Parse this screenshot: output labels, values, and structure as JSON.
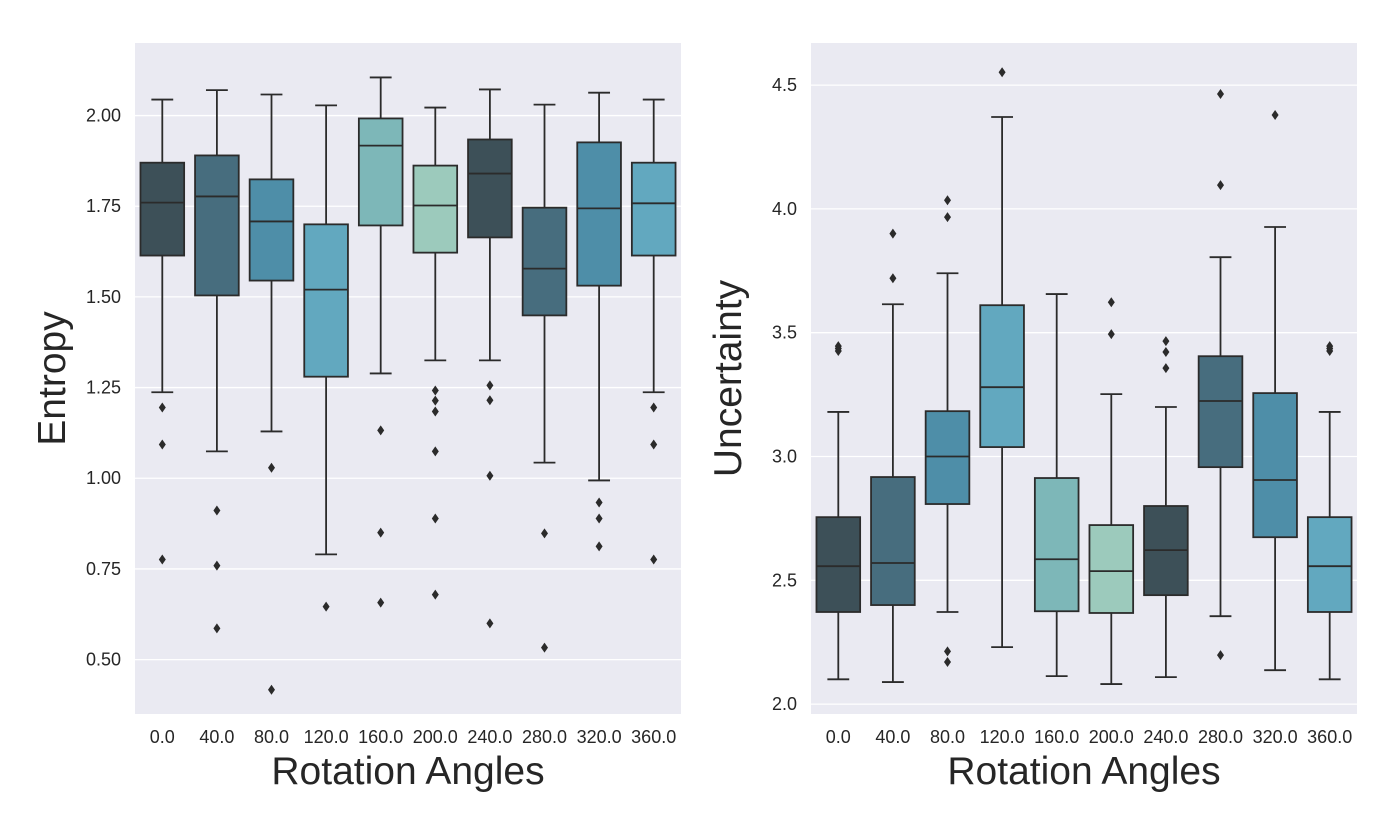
{
  "figure": {
    "background": "#ffffff",
    "axes_facecolor": "#eaeaf2",
    "grid_color": "#ffffff",
    "line_color": "#2b2b2b",
    "palette": [
      "#3d5058",
      "#476d7e",
      "#4e8ea8",
      "#62a8bf",
      "#7db7b8",
      "#9ccabc",
      "#3d5058",
      "#476d7e",
      "#4e8ea8",
      "#62a8bf"
    ]
  },
  "chart_data": [
    {
      "type": "boxplot",
      "title": "",
      "xlabel": "Rotation Angles",
      "ylabel": "Entropy",
      "categories": [
        "0.0",
        "40.0",
        "80.0",
        "120.0",
        "160.0",
        "200.0",
        "240.0",
        "280.0",
        "320.0",
        "360.0"
      ],
      "ylim": [
        0.35,
        2.2
      ],
      "yticks": [
        0.5,
        0.75,
        1.0,
        1.25,
        1.5,
        1.75,
        2.0
      ],
      "ytick_labels": [
        "0.50",
        "0.75",
        "1.00",
        "1.25",
        "1.50",
        "1.75",
        "2.00"
      ],
      "grid": true,
      "boxes": [
        {
          "whislo": 1.237,
          "q1": 1.614,
          "med": 1.76,
          "q3": 1.87,
          "whishi": 2.044,
          "fliers": [
            1.195,
            1.093,
            0.776
          ]
        },
        {
          "whislo": 1.074,
          "q1": 1.504,
          "med": 1.777,
          "q3": 1.89,
          "whishi": 2.07,
          "fliers": [
            0.911,
            0.759,
            0.586
          ]
        },
        {
          "whislo": 1.129,
          "q1": 1.545,
          "med": 1.708,
          "q3": 1.824,
          "whishi": 2.058,
          "fliers": [
            1.029,
            0.417
          ]
        },
        {
          "whislo": 0.79,
          "q1": 1.28,
          "med": 1.52,
          "q3": 1.7,
          "whishi": 2.028,
          "fliers": [
            0.646
          ]
        },
        {
          "whislo": 1.289,
          "q1": 1.697,
          "med": 1.917,
          "q3": 1.992,
          "whishi": 2.105,
          "fliers": [
            1.132,
            0.85,
            0.657
          ]
        },
        {
          "whislo": 1.325,
          "q1": 1.622,
          "med": 1.752,
          "q3": 1.862,
          "whishi": 2.022,
          "fliers": [
            1.242,
            1.214,
            1.184,
            1.074,
            0.889,
            0.679
          ]
        },
        {
          "whislo": 1.325,
          "q1": 1.664,
          "med": 1.84,
          "q3": 1.934,
          "whishi": 2.072,
          "fliers": [
            1.256,
            1.215,
            1.007,
            0.6
          ]
        },
        {
          "whislo": 1.043,
          "q1": 1.449,
          "med": 1.578,
          "q3": 1.746,
          "whishi": 2.03,
          "fliers": [
            0.848,
            0.533
          ]
        },
        {
          "whislo": 0.994,
          "q1": 1.531,
          "med": 1.744,
          "q3": 1.926,
          "whishi": 2.063,
          "fliers": [
            0.933,
            0.889,
            0.812
          ]
        },
        {
          "whislo": 1.237,
          "q1": 1.614,
          "med": 1.758,
          "q3": 1.87,
          "whishi": 2.044,
          "fliers": [
            1.195,
            1.093,
            0.776
          ]
        }
      ]
    },
    {
      "type": "boxplot",
      "title": "",
      "xlabel": "Rotation Angles",
      "ylabel": "Uncertainty",
      "categories": [
        "0.0",
        "40.0",
        "80.0",
        "120.0",
        "160.0",
        "200.0",
        "240.0",
        "280.0",
        "320.0",
        "360.0"
      ],
      "ylim": [
        1.96,
        4.67
      ],
      "yticks": [
        2.0,
        2.5,
        3.0,
        3.5,
        4.0,
        4.5
      ],
      "ytick_labels": [
        "2.0",
        "2.5",
        "3.0",
        "3.5",
        "4.0",
        "4.5"
      ],
      "grid": true,
      "boxes": [
        {
          "whislo": 2.1,
          "q1": 2.372,
          "med": 2.557,
          "q3": 2.755,
          "whishi": 3.18,
          "fliers": [
            3.446,
            3.436,
            3.426
          ]
        },
        {
          "whislo": 2.089,
          "q1": 2.4,
          "med": 2.57,
          "q3": 2.917,
          "whishi": 3.615,
          "fliers": [
            3.9,
            3.72
          ]
        },
        {
          "whislo": 2.372,
          "q1": 2.808,
          "med": 3.0,
          "q3": 3.183,
          "whishi": 3.74,
          "fliers": [
            4.035,
            3.967,
            2.213,
            2.17
          ]
        },
        {
          "whislo": 2.23,
          "q1": 3.038,
          "med": 3.28,
          "q3": 3.611,
          "whishi": 4.371,
          "fliers": [
            4.552
          ]
        },
        {
          "whislo": 2.113,
          "q1": 2.375,
          "med": 2.585,
          "q3": 2.913,
          "whishi": 3.656,
          "fliers": []
        },
        {
          "whislo": 2.081,
          "q1": 2.368,
          "med": 2.537,
          "q3": 2.723,
          "whishi": 3.252,
          "fliers": [
            3.623,
            3.494
          ]
        },
        {
          "whislo": 2.109,
          "q1": 2.44,
          "med": 2.622,
          "q3": 2.8,
          "whishi": 3.2,
          "fliers": [
            3.466,
            3.422,
            3.357
          ]
        },
        {
          "whislo": 2.355,
          "q1": 2.957,
          "med": 3.224,
          "q3": 3.405,
          "whishi": 3.805,
          "fliers": [
            4.464,
            4.096,
            2.198
          ]
        },
        {
          "whislo": 2.137,
          "q1": 2.674,
          "med": 2.905,
          "q3": 3.256,
          "whishi": 3.927,
          "fliers": [
            4.379
          ]
        },
        {
          "whislo": 2.1,
          "q1": 2.372,
          "med": 2.557,
          "q3": 2.755,
          "whishi": 3.18,
          "fliers": [
            3.446,
            3.436,
            3.426
          ]
        }
      ]
    }
  ]
}
